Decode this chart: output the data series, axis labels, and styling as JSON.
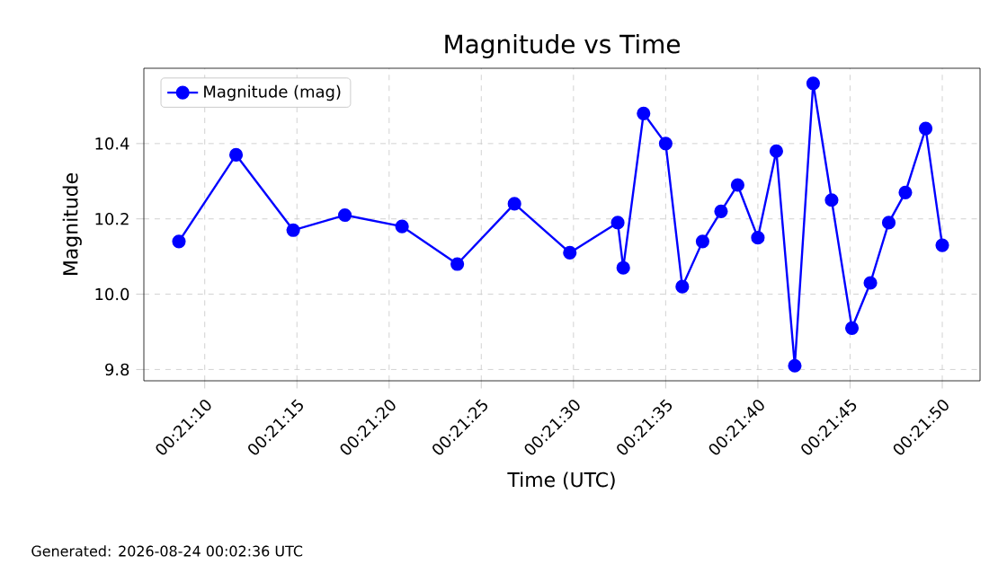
{
  "chart_data": {
    "type": "line",
    "title": "Magnitude vs Time",
    "xlabel": "Time (UTC)",
    "ylabel": "Magnitude",
    "x": [
      0.352389,
      0.35325,
      0.354111,
      0.354889,
      0.35575,
      0.356583,
      0.357444,
      0.358278,
      0.359,
      0.359083,
      0.359389,
      0.359722,
      0.359972,
      0.360278,
      0.360556,
      0.360806,
      0.361111,
      0.361389,
      0.361667,
      0.361944,
      0.362222,
      0.362528,
      0.362806,
      0.363083,
      0.363333,
      0.363639,
      0.363889
    ],
    "series": [
      {
        "name": "Magnitude (mag)",
        "color": "#0000ff",
        "values": [
          10.14,
          10.37,
          10.17,
          10.21,
          10.18,
          10.08,
          10.24,
          10.11,
          10.19,
          10.07,
          10.48,
          10.4,
          10.02,
          10.14,
          10.22,
          10.29,
          10.15,
          10.38,
          9.81,
          10.56,
          10.25,
          9.91,
          10.03,
          10.19,
          10.27,
          10.44,
          10.13
        ]
      }
    ],
    "xlim": [
      0.351861,
      0.364458
    ],
    "ylim": [
      9.77,
      10.6
    ],
    "xticks": [
      {
        "value": 0.352778,
        "label": "00:21:10"
      },
      {
        "value": 0.354167,
        "label": "00:21:15"
      },
      {
        "value": 0.355556,
        "label": "00:21:20"
      },
      {
        "value": 0.356944,
        "label": "00:21:25"
      },
      {
        "value": 0.358333,
        "label": "00:21:30"
      },
      {
        "value": 0.359722,
        "label": "00:21:35"
      },
      {
        "value": 0.361111,
        "label": "00:21:40"
      },
      {
        "value": 0.3625,
        "label": "00:21:45"
      },
      {
        "value": 0.363889,
        "label": "00:21:50"
      }
    ],
    "yticks": [
      9.8,
      {
        "value": 10.0,
        "label": "10.0"
      },
      10.2,
      10.4
    ],
    "grid": true,
    "legend": "top left",
    "marker": "circle",
    "line_style": "solid",
    "annotations": [
      "Generated: 2026-08-24 00:02:36 UTC"
    ]
  }
}
